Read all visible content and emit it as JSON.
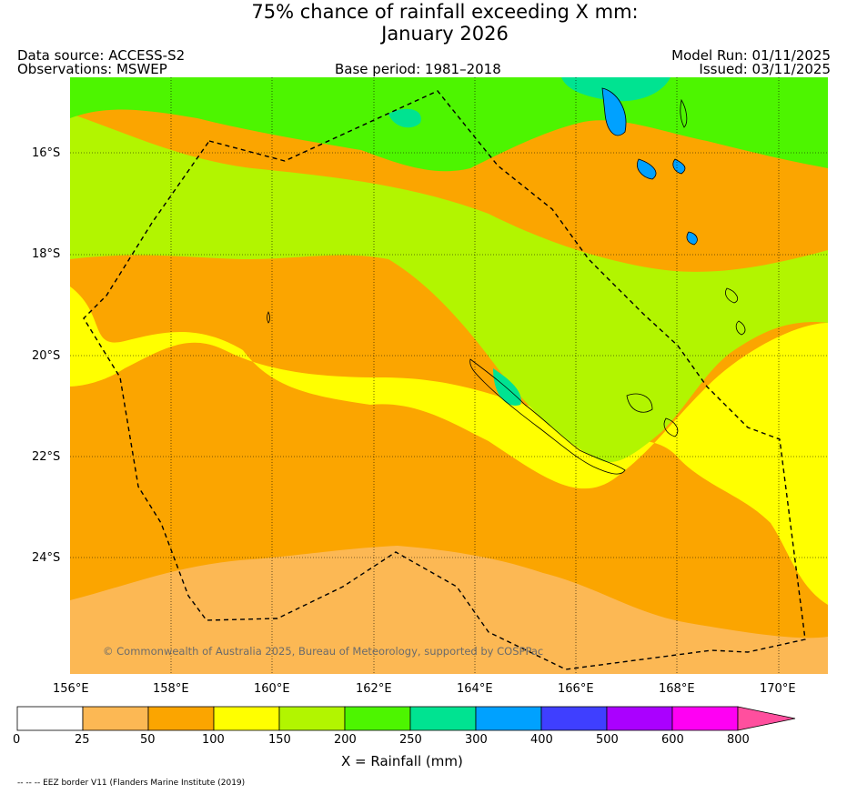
{
  "header": {
    "title_line1": "75% chance of rainfall exceeding X mm:",
    "title_line2": "January 2026",
    "data_source": "Data source: ACCESS-S2",
    "observations": "Observations: MSWEP",
    "base_period": "Base period: 1981–2018",
    "model_run": "Model Run: 01/11/2025",
    "issued": "Issued: 03/11/2025"
  },
  "map": {
    "lat_labels": [
      "16°S",
      "18°S",
      "20°S",
      "22°S",
      "24°S"
    ],
    "lon_labels": [
      "156°E",
      "158°E",
      "160°E",
      "162°E",
      "164°E",
      "166°E",
      "168°E",
      "170°E"
    ],
    "copyright": "© Commonwealth of Australia 2025, Bureau of Meteorology, supported by COSPPac"
  },
  "colorbar": {
    "bins": [
      {
        "range": "0–25",
        "color": "#ffffff"
      },
      {
        "range": "25–50",
        "color": "#fcb854"
      },
      {
        "range": "50–100",
        "color": "#fba500"
      },
      {
        "range": "100–150",
        "color": "#ffff00"
      },
      {
        "range": "150–200",
        "color": "#b2f500"
      },
      {
        "range": "200–250",
        "color": "#4df500"
      },
      {
        "range": "250–300",
        "color": "#00e391"
      },
      {
        "range": "300–400",
        "color": "#00a1ff"
      },
      {
        "range": "400–500",
        "color": "#3f3fff"
      },
      {
        "range": "500–600",
        "color": "#aa00ff"
      },
      {
        "range": "600–800",
        "color": "#ff00f3"
      },
      {
        "range": ">800",
        "color": "#ff4f9e"
      }
    ],
    "tick_labels": [
      "0",
      "25",
      "50",
      "100",
      "150",
      "200",
      "250",
      "300",
      "400",
      "500",
      "600",
      "800"
    ],
    "label": "X = Rainfall (mm)"
  },
  "footnote": "-- -- -- EEZ border V11 (Flanders Marine Institute (2019)"
}
